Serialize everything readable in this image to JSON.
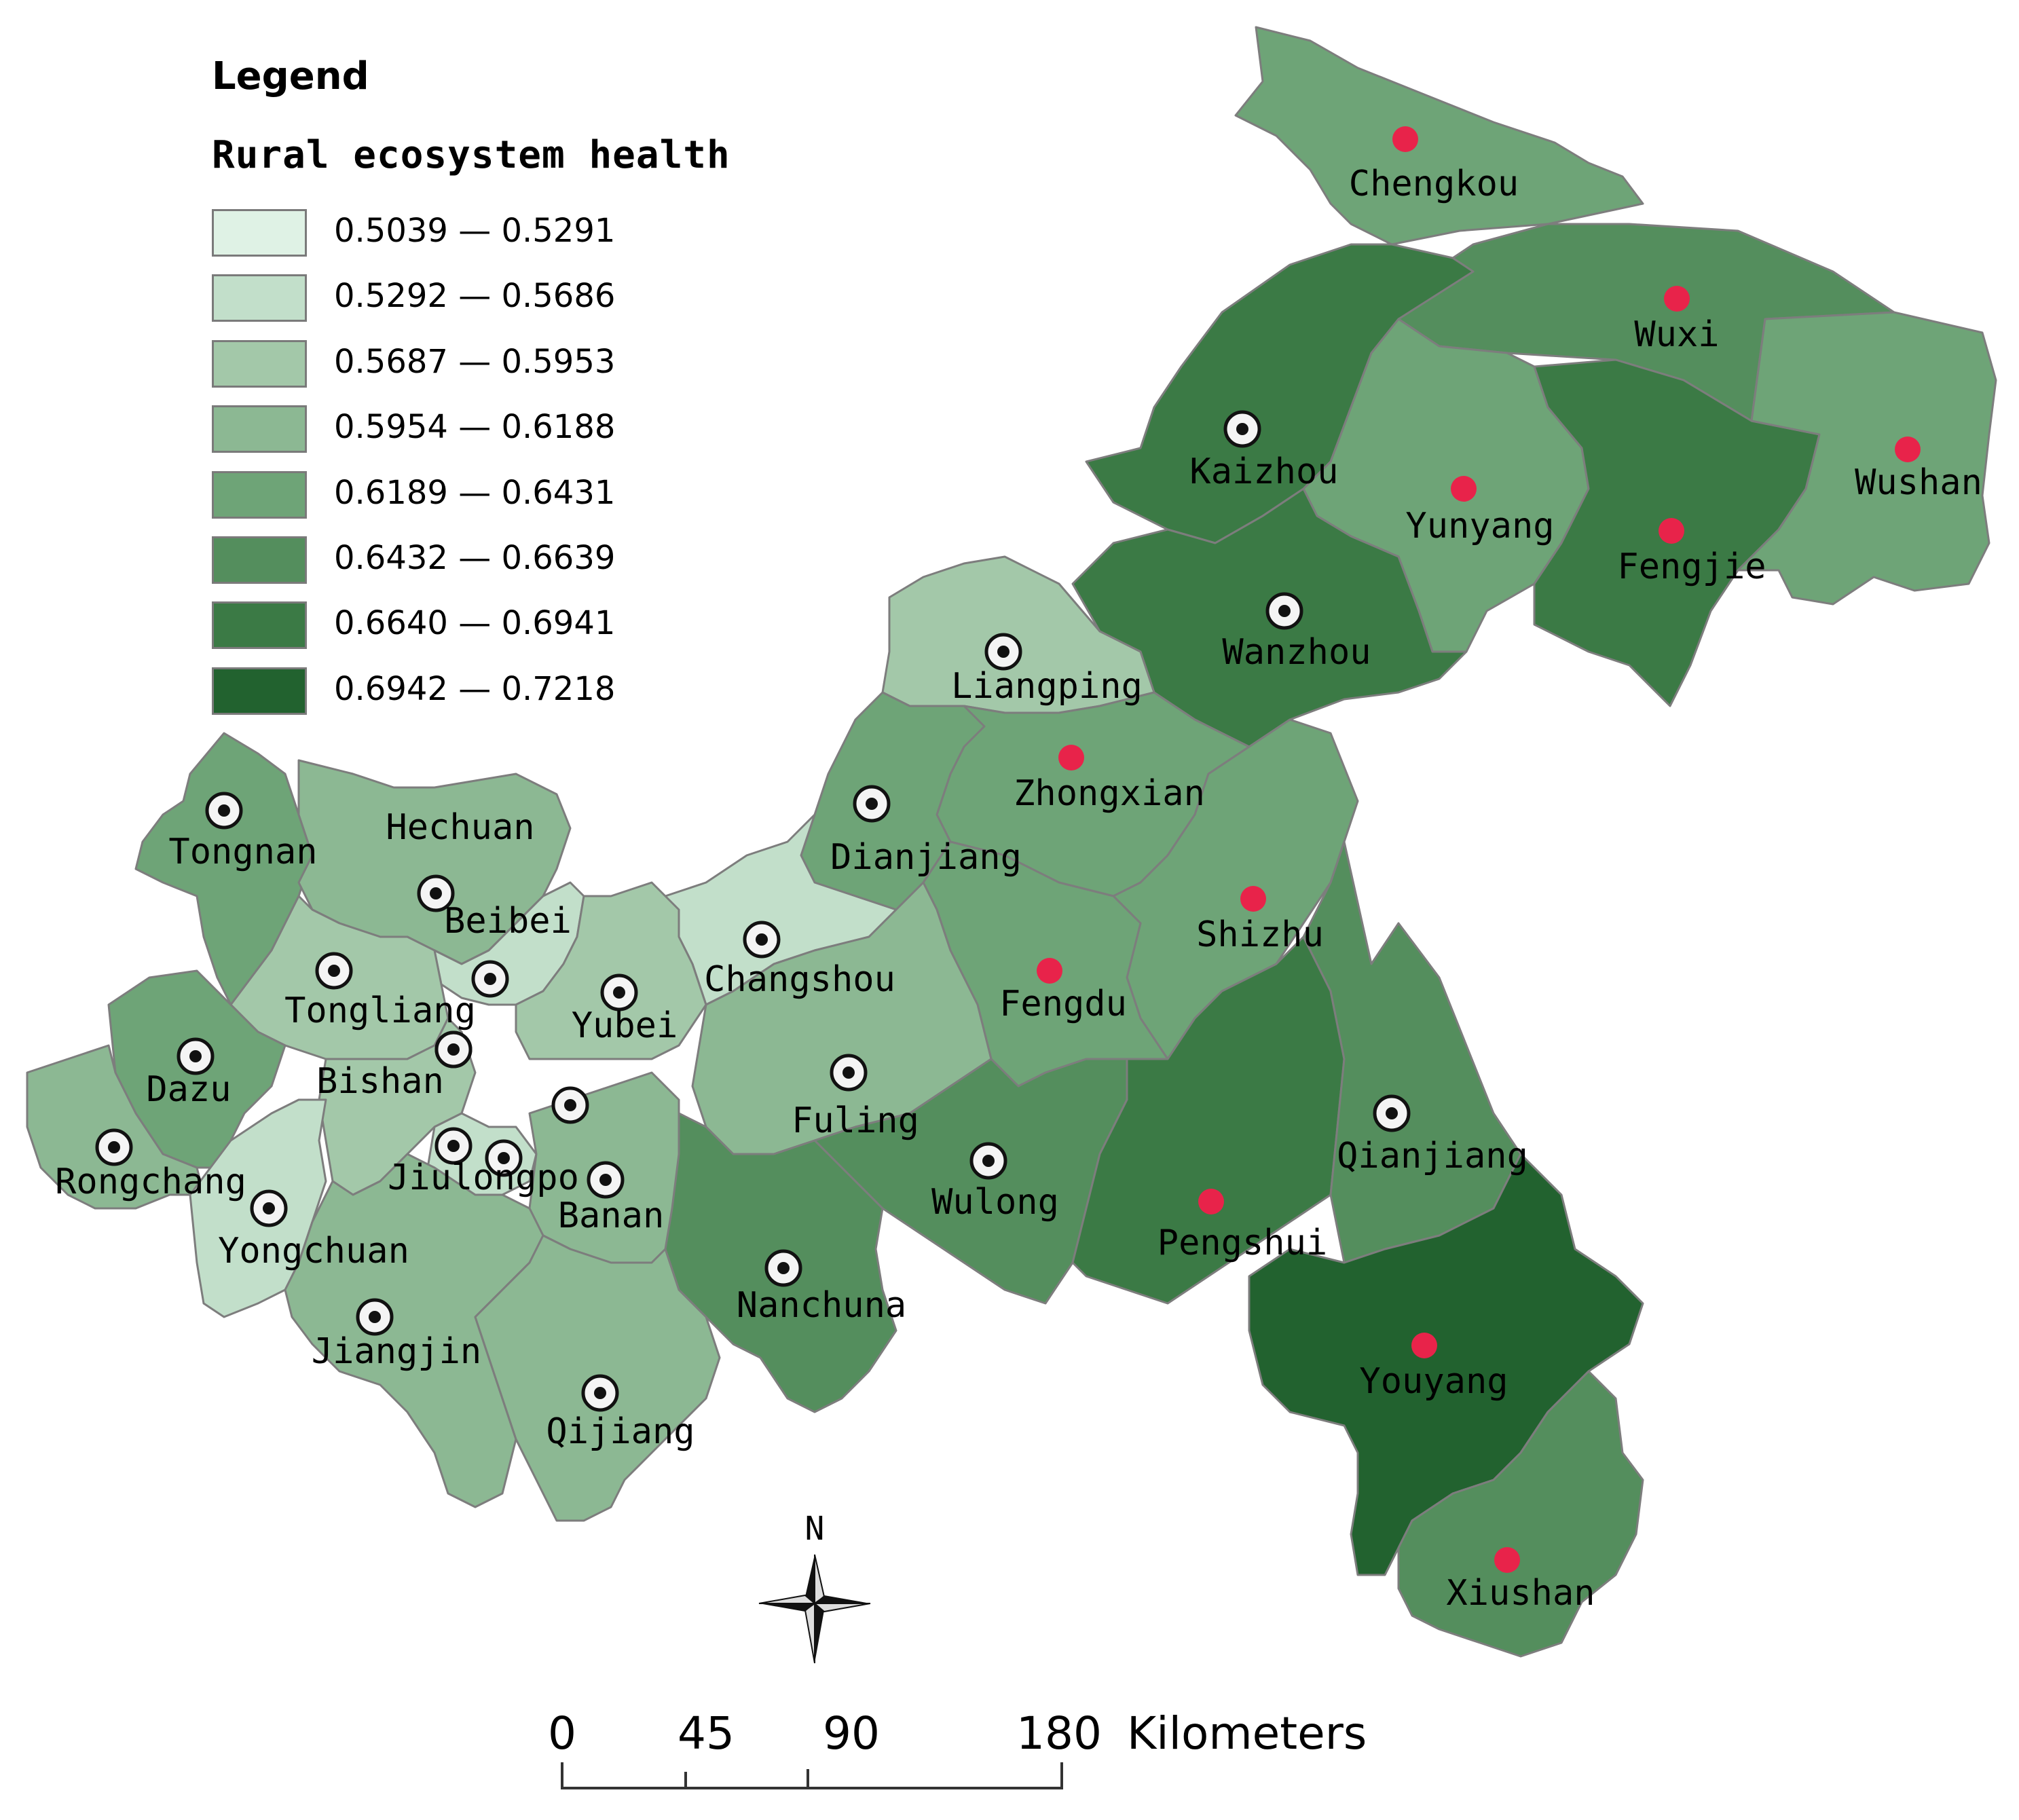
{
  "legend": {
    "title": "Legend",
    "subtitle": "Rural ecosystem health",
    "classes": [
      {
        "label": "0.5039 — 0.5291",
        "color": "#dff2e5"
      },
      {
        "label": "0.5292 — 0.5686",
        "color": "#c2dfca"
      },
      {
        "label": "0.5687 — 0.5953",
        "color": "#a3c8a9"
      },
      {
        "label": "0.5954 — 0.6188",
        "color": "#8cb893"
      },
      {
        "label": "0.6189 — 0.6431",
        "color": "#6ea477"
      },
      {
        "label": "0.6432 — 0.6639",
        "color": "#548e5d"
      },
      {
        "label": "0.6640 — 0.6941",
        "color": "#3b7a45"
      },
      {
        "label": "0.6942 — 0.7218",
        "color": "#22622f"
      }
    ]
  },
  "marker_colors": {
    "red": "#e8234a",
    "black": "#111111"
  },
  "districts": [
    {
      "name": "Chengkou",
      "class": 4,
      "marker": "red"
    },
    {
      "name": "Wuxi",
      "class": 5,
      "marker": "red"
    },
    {
      "name": "Kaizhou",
      "class": 6,
      "marker": "black"
    },
    {
      "name": "Yunyang",
      "class": 4,
      "marker": "red"
    },
    {
      "name": "Fengjie",
      "class": 6,
      "marker": "red"
    },
    {
      "name": "Wushan",
      "class": 4,
      "marker": "red"
    },
    {
      "name": "Wanzhou",
      "class": 6,
      "marker": "black"
    },
    {
      "name": "Liangping",
      "class": 2,
      "marker": "black"
    },
    {
      "name": "Zhongxian",
      "class": 4,
      "marker": "red"
    },
    {
      "name": "Dianjiang",
      "class": 4,
      "marker": "black"
    },
    {
      "name": "Shizhu",
      "class": 4,
      "marker": "red"
    },
    {
      "name": "Fengdu",
      "class": 4,
      "marker": "red"
    },
    {
      "name": "Changshou",
      "class": 1,
      "marker": "black"
    },
    {
      "name": "Fuling",
      "class": 3,
      "marker": "black"
    },
    {
      "name": "Wulong",
      "class": 5,
      "marker": "black"
    },
    {
      "name": "Pengshui",
      "class": 6,
      "marker": "red"
    },
    {
      "name": "Qianjiang",
      "class": 5,
      "marker": "black"
    },
    {
      "name": "Youyang",
      "class": 7,
      "marker": "red"
    },
    {
      "name": "Xiushan",
      "class": 5,
      "marker": "red"
    },
    {
      "name": "Nanchuna",
      "class": 5,
      "marker": "black"
    },
    {
      "name": "Tongnan",
      "class": 4,
      "marker": "black"
    },
    {
      "name": "Hechuan",
      "class": 3,
      "marker": "black"
    },
    {
      "name": "Beibei",
      "class": 1,
      "marker": "black"
    },
    {
      "name": "Yubei",
      "class": 2,
      "marker": "black"
    },
    {
      "name": "Tongliang",
      "class": 2,
      "marker": "black"
    },
    {
      "name": "Dazu",
      "class": 4,
      "marker": "black"
    },
    {
      "name": "Bishan",
      "class": 2,
      "marker": "black"
    },
    {
      "name": "Rongchang",
      "class": 3,
      "marker": "black"
    },
    {
      "name": "Jiulongpo",
      "class": 1,
      "marker": "black"
    },
    {
      "name": "Banan",
      "class": 3,
      "marker": "black"
    },
    {
      "name": "Yongchuan",
      "class": 1,
      "marker": "black"
    },
    {
      "name": "Jiangjin",
      "class": 3,
      "marker": "black"
    },
    {
      "name": "Qijiang",
      "class": 3,
      "marker": "black"
    }
  ],
  "compass": {
    "north_label": "N"
  },
  "scale_bar": {
    "ticks": [
      "0",
      "45",
      "90",
      "180"
    ],
    "unit": "Kilometers"
  }
}
